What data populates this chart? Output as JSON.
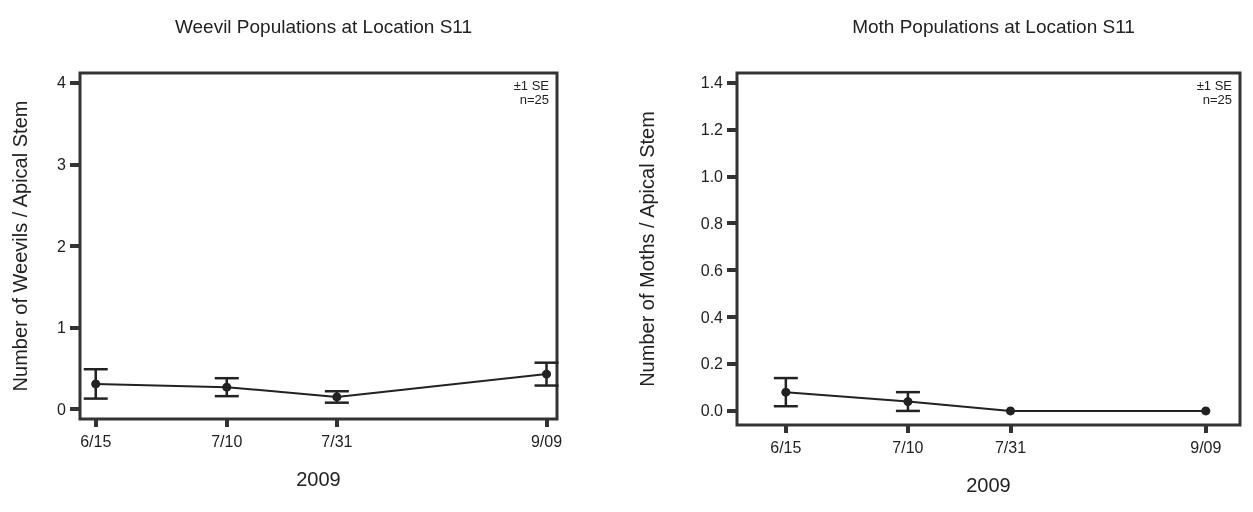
{
  "chart_data": [
    {
      "type": "line",
      "title": "Weevil Populations at Location S11",
      "xlabel": "2009",
      "ylabel": "Number of Weevils / Apical Stem",
      "x": [
        "--06-15",
        "--07-10",
        "--07-31",
        "--09-09"
      ],
      "series": [
        {
          "color": "#222222",
          "values": [
            0.31,
            0.27,
            0.15,
            0.43
          ],
          "errors": [
            0.18,
            0.11,
            0.07,
            0.14
          ]
        }
      ],
      "xlim": [
        "--06-12",
        "--09-11"
      ],
      "xticks": [
        {
          "value": "--06-15",
          "label": "6/15"
        },
        {
          "value": "--07-10",
          "label": "7/10"
        },
        {
          "value": "--07-31",
          "label": "7/31"
        },
        {
          "value": "--09-09",
          "label": "9/09"
        }
      ],
      "ylim": [
        -0.12,
        4.12
      ],
      "yticks": [
        0,
        1,
        2,
        3,
        4
      ],
      "annotations": [
        "±1 SE",
        "n=25"
      ],
      "grid": false,
      "marker": "circle",
      "line_style": "solid"
    },
    {
      "type": "line",
      "title": "Moth Populations at Location S11",
      "xlabel": "2009",
      "ylabel": "Number of Moths / Apical Stem",
      "x": [
        "--06-15",
        "--07-10",
        "--07-31",
        "--09-09"
      ],
      "series": [
        {
          "color": "#222222",
          "values": [
            0.08,
            0.04,
            0.0,
            0.0
          ],
          "errors": [
            0.06,
            0.04,
            null,
            null
          ]
        }
      ],
      "xlim": [
        "--06-05",
        "--09-16"
      ],
      "xticks": [
        {
          "value": "--06-15",
          "label": "6/15"
        },
        {
          "value": "--07-10",
          "label": "7/10"
        },
        {
          "value": "--07-31",
          "label": "7/31"
        },
        {
          "value": "--09-09",
          "label": "9/09"
        }
      ],
      "ylim": [
        -0.06,
        1.44
      ],
      "yticks": [
        {
          "value": 0,
          "label": "0.0"
        },
        {
          "value": 0.2,
          "label": "0.2"
        },
        {
          "value": 0.4,
          "label": "0.4"
        },
        {
          "value": 0.6,
          "label": "0.6"
        },
        {
          "value": 0.8,
          "label": "0.8"
        },
        {
          "value": 1.0,
          "label": "1.0"
        },
        {
          "value": 1.2,
          "label": "1.2"
        },
        {
          "value": 1.4,
          "label": "1.4"
        }
      ],
      "annotations": [
        "±1 SE",
        "n=25"
      ],
      "grid": false,
      "marker": "circle",
      "line_style": "solid"
    }
  ]
}
